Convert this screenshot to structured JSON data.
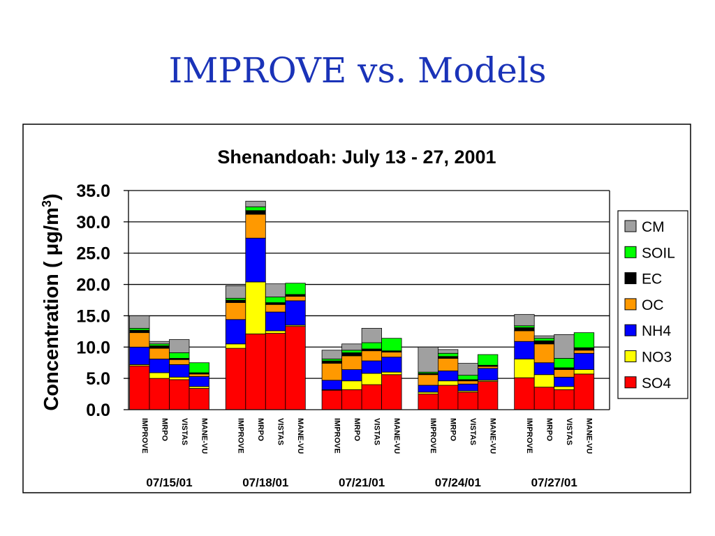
{
  "slide": {
    "title": "IMPROVE vs. Models"
  },
  "colors": {
    "SO4": "#ff0000",
    "NO3": "#ffff00",
    "NH4": "#0000ff",
    "OC": "#ff9900",
    "EC": "#000000",
    "SOIL": "#00ff00",
    "CM": "#a0a0a0"
  },
  "chart_data": {
    "type": "bar",
    "stacked": true,
    "title": "Shenandoah: July 13 - 27, 2001",
    "ylabel": "Concentration ( μg/m3)",
    "ylabel_base": "Concentration ( μg/m",
    "ylabel_sup": "3",
    "ylabel_close": ")",
    "ylim": [
      0,
      35
    ],
    "yticks": [
      "0.0",
      "5.0",
      "10.0",
      "15.0",
      "20.0",
      "25.0",
      "30.0",
      "35.0"
    ],
    "ytick_values": [
      0,
      5,
      10,
      15,
      20,
      25,
      30,
      35
    ],
    "grid": true,
    "legend_position": "right",
    "group_labels": [
      "07/15/01",
      "07/18/01",
      "07/21/01",
      "07/24/01",
      "07/27/01"
    ],
    "bar_labels": [
      "IMPROVE",
      "MRPO",
      "VISTAS",
      "MANE-VU"
    ],
    "series_names": [
      "SO4",
      "NO3",
      "NH4",
      "OC",
      "EC",
      "SOIL",
      "CM"
    ],
    "legend_order": [
      "CM",
      "SOIL",
      "EC",
      "OC",
      "NH4",
      "NO3",
      "SO4"
    ],
    "groups": [
      {
        "date": "07/15/01",
        "bars": [
          {
            "label": "IMPROVE",
            "values": [
              7.0,
              0.2,
              2.8,
              2.3,
              0.4,
              0.3,
              2.0
            ]
          },
          {
            "label": "MRPO",
            "values": [
              5.0,
              0.9,
              2.2,
              1.7,
              0.4,
              0.3,
              0.4
            ]
          },
          {
            "label": "VISTAS",
            "values": [
              4.8,
              0.4,
              2.0,
              0.8,
              0.2,
              0.9,
              2.1
            ]
          },
          {
            "label": "MANE-VU",
            "values": [
              3.4,
              0.3,
              1.6,
              0.4,
              0.2,
              1.6,
              0.0
            ]
          }
        ]
      },
      {
        "date": "07/18/01",
        "bars": [
          {
            "label": "IMPROVE",
            "values": [
              9.8,
              0.7,
              3.9,
              2.7,
              0.4,
              0.3,
              2.0
            ]
          },
          {
            "label": "MRPO",
            "values": [
              12.1,
              8.3,
              7.0,
              3.8,
              0.6,
              0.6,
              0.9
            ]
          },
          {
            "label": "VISTAS",
            "values": [
              12.2,
              0.4,
              3.0,
              1.2,
              0.3,
              0.9,
              2.1
            ]
          },
          {
            "label": "MANE-VU",
            "values": [
              13.3,
              0.2,
              3.9,
              0.7,
              0.3,
              1.8,
              0.0
            ]
          }
        ]
      },
      {
        "date": "07/21/01",
        "bars": [
          {
            "label": "IMPROVE",
            "values": [
              3.1,
              0.1,
              1.5,
              2.7,
              0.4,
              0.3,
              1.4
            ]
          },
          {
            "label": "MRPO",
            "values": [
              3.2,
              1.4,
              1.8,
              2.2,
              0.5,
              0.4,
              1.0
            ]
          },
          {
            "label": "VISTAS",
            "values": [
              4.0,
              1.8,
              2.0,
              1.6,
              0.3,
              1.0,
              2.3
            ]
          },
          {
            "label": "MANE-VU",
            "values": [
              5.6,
              0.4,
              2.4,
              0.8,
              0.2,
              2.0,
              0.0
            ]
          }
        ]
      },
      {
        "date": "07/24/01",
        "bars": [
          {
            "label": "IMPROVE",
            "values": [
              2.5,
              0.3,
              1.1,
              1.7,
              0.2,
              0.2,
              4.0
            ]
          },
          {
            "label": "MRPO",
            "values": [
              3.9,
              0.7,
              1.6,
              2.0,
              0.3,
              0.5,
              0.6
            ]
          },
          {
            "label": "VISTAS",
            "values": [
              2.8,
              0.2,
              1.1,
              0.5,
              0.2,
              0.7,
              1.9
            ]
          },
          {
            "label": "MANE-VU",
            "values": [
              4.5,
              0.2,
              1.9,
              0.3,
              0.2,
              1.7,
              0.0
            ]
          }
        ]
      },
      {
        "date": "07/27/01",
        "bars": [
          {
            "label": "IMPROVE",
            "values": [
              5.1,
              3.0,
              2.8,
              1.7,
              0.5,
              0.3,
              1.8
            ]
          },
          {
            "label": "MRPO",
            "values": [
              3.6,
              2.0,
              1.9,
              3.0,
              0.5,
              0.4,
              0.4
            ]
          },
          {
            "label": "VISTAS",
            "values": [
              3.2,
              0.5,
              1.5,
              1.2,
              0.3,
              1.5,
              3.8
            ]
          },
          {
            "label": "MANE-VU",
            "values": [
              5.7,
              0.7,
              2.6,
              0.5,
              0.4,
              2.4,
              0.0
            ]
          }
        ]
      }
    ]
  }
}
